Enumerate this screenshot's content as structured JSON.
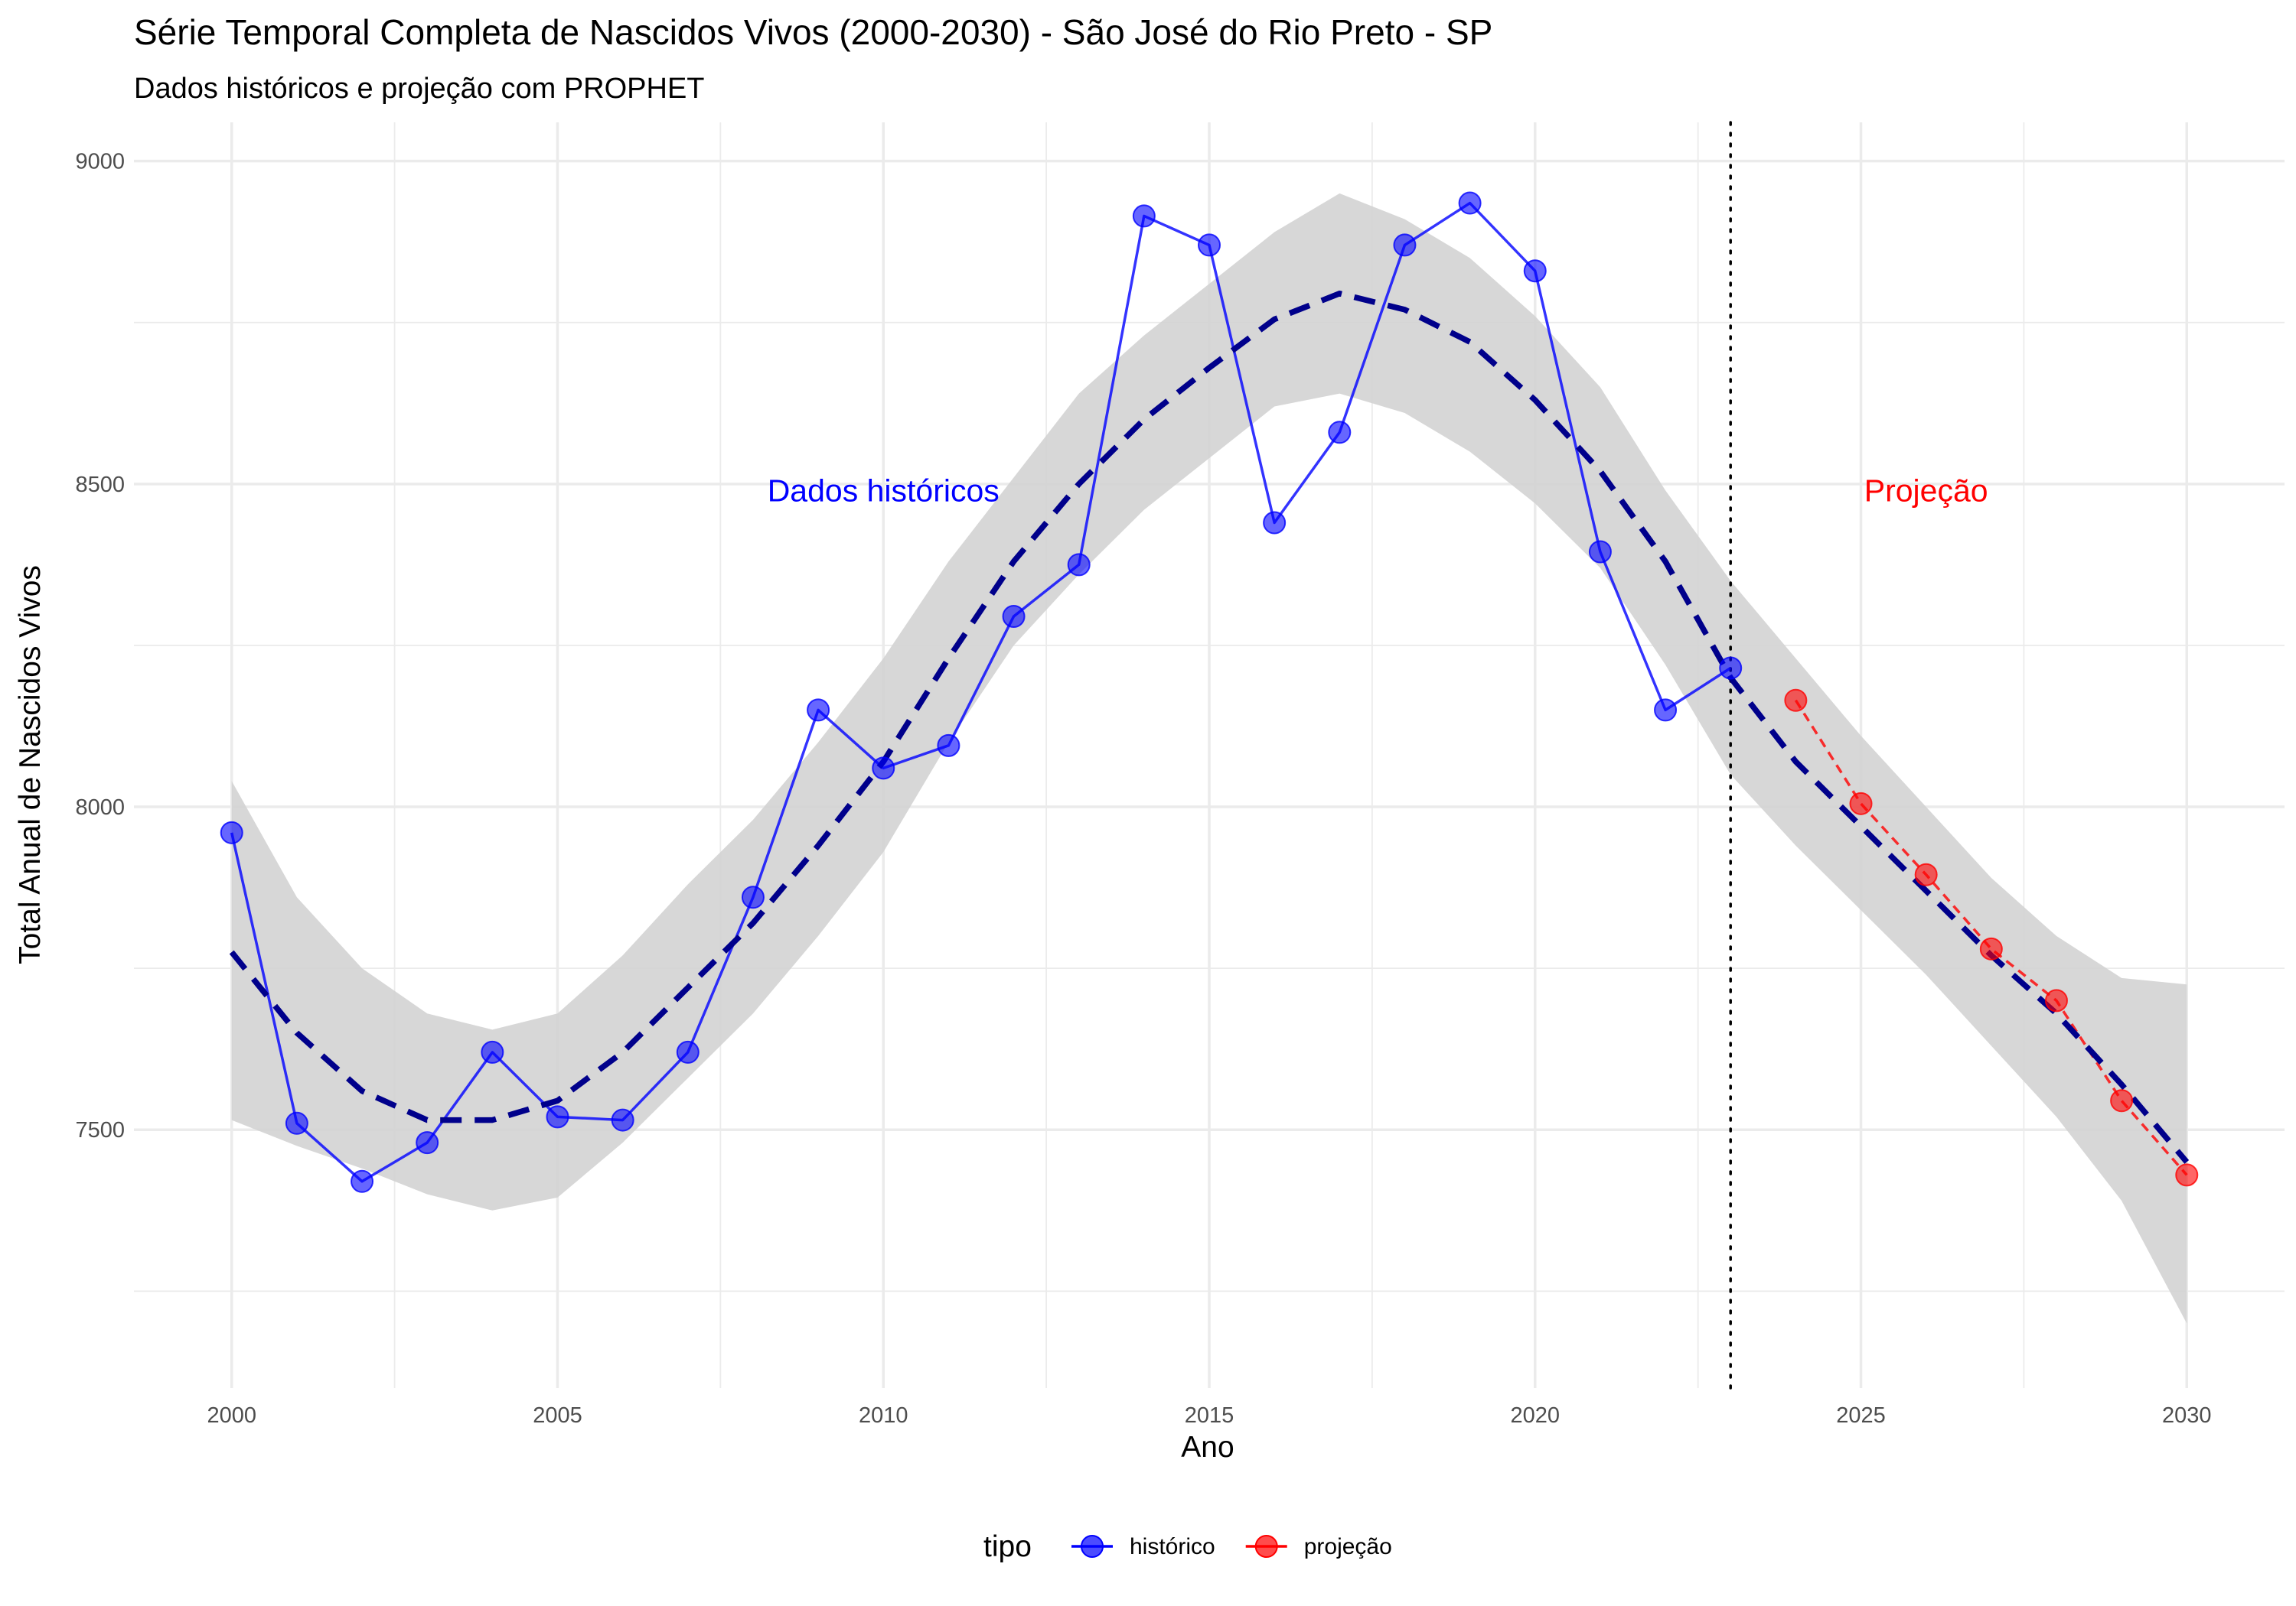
{
  "chart_data": {
    "type": "line",
    "title": "Série Temporal Completa de Nascidos Vivos (2000-2030) -  São José do Rio Preto - SP",
    "subtitle": "Dados históricos e projeção com PROPHET",
    "xlabel": "Ano",
    "ylabel": "Total Anual de Nascidos Vivos",
    "xlim": [
      1998.5,
      2031.5
    ],
    "ylim": [
      7100,
      9060
    ],
    "x_ticks": [
      2000,
      2005,
      2010,
      2015,
      2020,
      2025,
      2030
    ],
    "y_ticks": [
      7500,
      8000,
      8500,
      9000
    ],
    "grid": true,
    "vline_x": 2023,
    "annotations": [
      {
        "text": "Dados históricos",
        "x": 2010,
        "y": 8490,
        "color": "#0000ff"
      },
      {
        "text": "Projeção",
        "x": 2026,
        "y": 8490,
        "color": "#ff0000"
      }
    ],
    "legend": {
      "title": "tipo",
      "position": "bottom",
      "entries": [
        {
          "label": "histórico",
          "color": "#0000ff"
        },
        {
          "label": "projeção",
          "color": "#ff0000"
        }
      ]
    },
    "series": [
      {
        "name": "histórico",
        "color": "#0000ff",
        "x": [
          2000,
          2001,
          2002,
          2003,
          2004,
          2005,
          2006,
          2007,
          2008,
          2009,
          2010,
          2011,
          2012,
          2013,
          2014,
          2015,
          2016,
          2017,
          2018,
          2019,
          2020,
          2021,
          2022,
          2023
        ],
        "values": [
          7960,
          7510,
          7420,
          7480,
          7620,
          7520,
          7515,
          7620,
          7860,
          8150,
          8060,
          8095,
          8295,
          8375,
          8915,
          8870,
          8440,
          8580,
          8870,
          8935,
          8830,
          8395,
          8150,
          8215
        ]
      },
      {
        "name": "projeção",
        "color": "#ff0000",
        "x": [
          2024,
          2025,
          2026,
          2027,
          2028,
          2029,
          2030
        ],
        "values": [
          8165,
          8005,
          7895,
          7780,
          7700,
          7545,
          7430
        ]
      }
    ],
    "trend": {
      "color": "#00008b",
      "x": [
        2000,
        2001,
        2002,
        2003,
        2004,
        2005,
        2006,
        2007,
        2008,
        2009,
        2010,
        2011,
        2012,
        2013,
        2014,
        2015,
        2016,
        2017,
        2018,
        2019,
        2020,
        2021,
        2022,
        2023,
        2024,
        2025,
        2026,
        2027,
        2028,
        2029,
        2030
      ],
      "values": [
        7775,
        7650,
        7560,
        7515,
        7515,
        7545,
        7620,
        7720,
        7820,
        7940,
        8070,
        8230,
        8380,
        8500,
        8600,
        8680,
        8755,
        8795,
        8770,
        8720,
        8630,
        8520,
        8380,
        8200,
        8070,
        7970,
        7870,
        7770,
        7680,
        7570,
        7450
      ]
    },
    "confidence_band": {
      "color": "#d3d3d3",
      "x": [
        2000,
        2001,
        2002,
        2003,
        2004,
        2005,
        2006,
        2007,
        2008,
        2009,
        2010,
        2011,
        2012,
        2013,
        2014,
        2015,
        2016,
        2017,
        2018,
        2019,
        2020,
        2021,
        2022,
        2023,
        2024,
        2025,
        2026,
        2027,
        2028,
        2029,
        2030
      ],
      "lower": [
        7515,
        7475,
        7440,
        7400,
        7375,
        7395,
        7480,
        7580,
        7680,
        7800,
        7930,
        8100,
        8250,
        8360,
        8460,
        8540,
        8620,
        8640,
        8610,
        8550,
        8470,
        8370,
        8220,
        8050,
        7940,
        7840,
        7740,
        7630,
        7520,
        7390,
        7200
      ],
      "upper": [
        8040,
        7860,
        7750,
        7680,
        7655,
        7680,
        7770,
        7880,
        7980,
        8100,
        8230,
        8380,
        8510,
        8640,
        8730,
        8810,
        8890,
        8950,
        8910,
        8850,
        8760,
        8650,
        8490,
        8350,
        8230,
        8110,
        8000,
        7890,
        7800,
        7735,
        7725
      ]
    }
  }
}
